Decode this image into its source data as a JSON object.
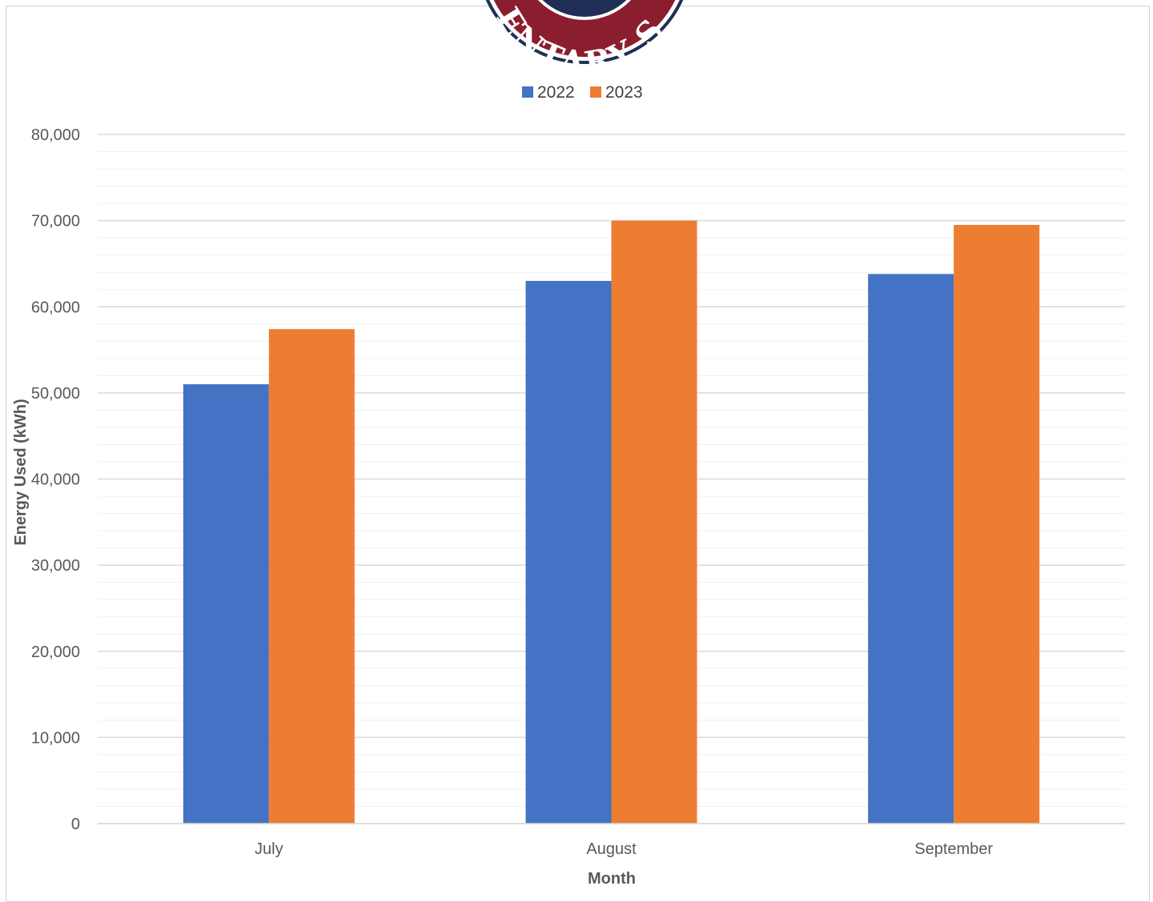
{
  "chart_data": {
    "type": "bar",
    "title": "",
    "categories": [
      "July",
      "August",
      "September"
    ],
    "series": [
      {
        "name": "2022",
        "color": "#4472C4",
        "values": [
          51000,
          63000,
          63800
        ]
      },
      {
        "name": "2023",
        "color": "#ED7D31",
        "values": [
          57400,
          70000,
          69500
        ]
      }
    ],
    "xlabel": "Month",
    "ylabel": "Energy Used (kWh)",
    "ylim": [
      0,
      80000
    ],
    "yticks": [
      "0",
      "10,000",
      "20,000",
      "30,000",
      "40,000",
      "50,000",
      "60,000",
      "70,000",
      "80,000"
    ],
    "y_major_step": 10000,
    "y_minor_step": 2000,
    "grid": true,
    "legend_position": "top"
  },
  "logo": {
    "text": "ENTARY SU",
    "ring_color": "#8B1E2E",
    "outer_color": "#1F2F55"
  }
}
